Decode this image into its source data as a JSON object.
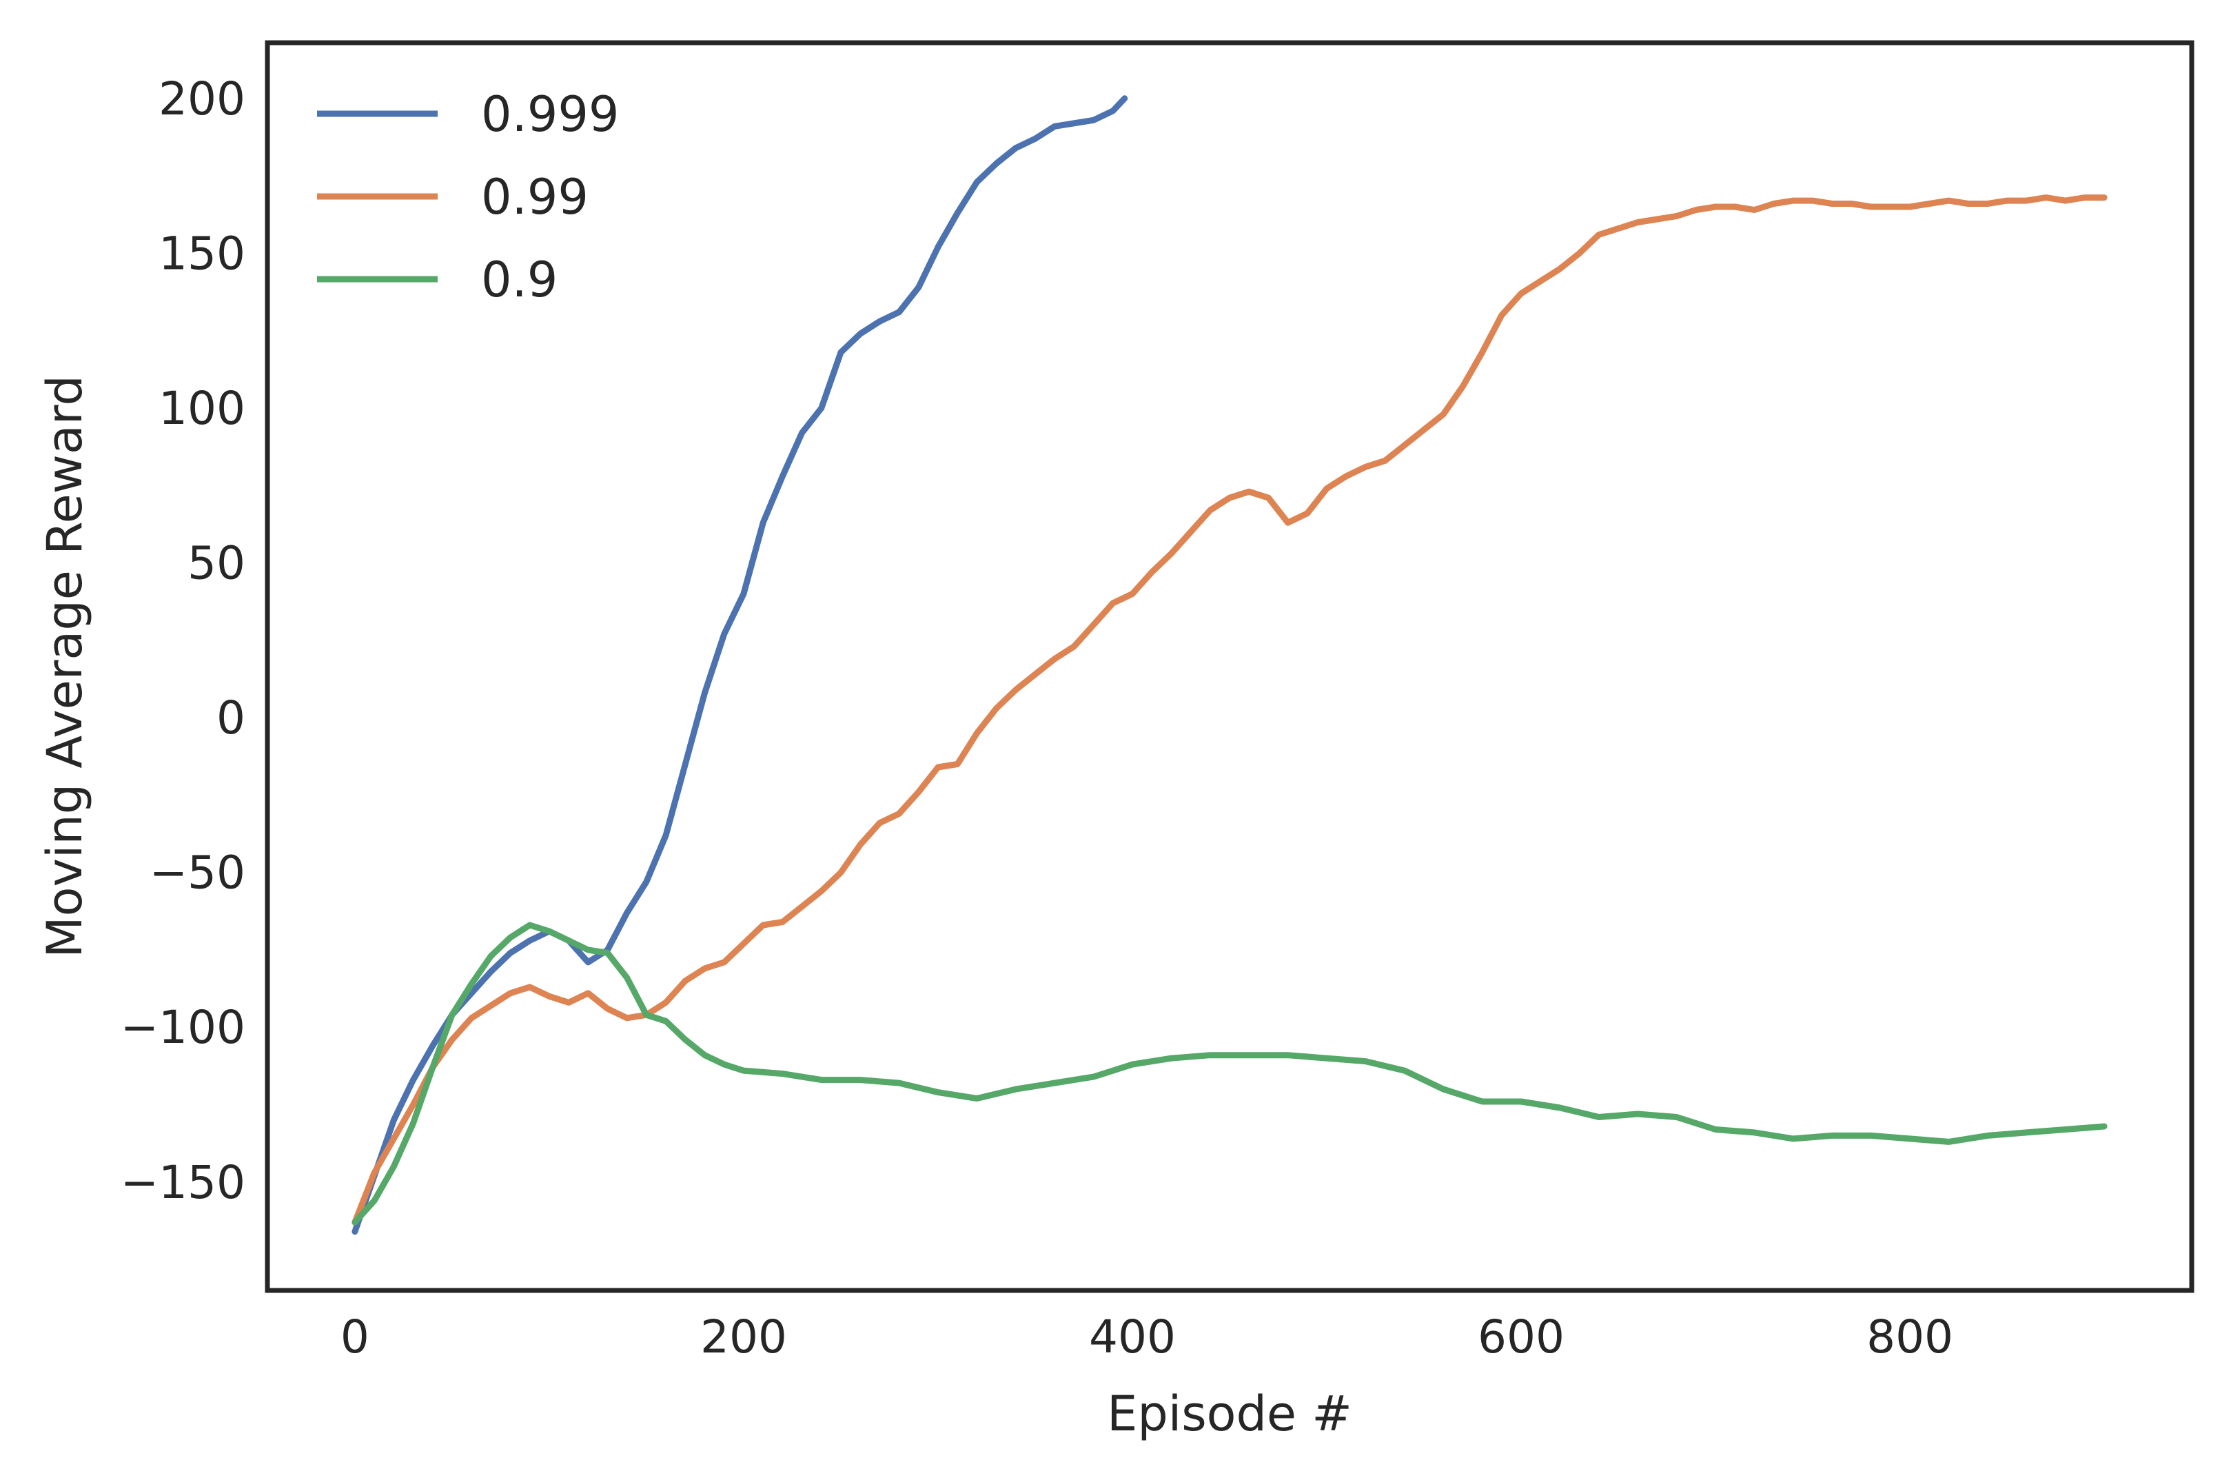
{
  "chart_data": {
    "type": "line",
    "title": "",
    "xlabel": "Episode #",
    "ylabel": "Moving Average Reward",
    "xlim": [
      -45,
      945
    ],
    "ylim": [
      -185,
      218
    ],
    "xticks": [
      0,
      200,
      400,
      600,
      800
    ],
    "yticks": [
      -150,
      -100,
      -50,
      0,
      50,
      100,
      150,
      200
    ],
    "tick_labels_x": [
      "0",
      "200",
      "400",
      "600",
      "800"
    ],
    "tick_labels_y": [
      "−150",
      "−100",
      "−50",
      "0",
      "50",
      "100",
      "150",
      "200"
    ],
    "grid": false,
    "legend_position": "top-left",
    "series": [
      {
        "name": "0.999",
        "color": "#4c72b0",
        "x": [
          0,
          10,
          20,
          30,
          40,
          50,
          60,
          70,
          80,
          90,
          100,
          110,
          120,
          130,
          140,
          150,
          160,
          170,
          180,
          190,
          200,
          210,
          220,
          230,
          240,
          250,
          260,
          270,
          280,
          290,
          300,
          310,
          320,
          330,
          340,
          350,
          360,
          370,
          380,
          390,
          396
        ],
        "y": [
          -166,
          -148,
          -130,
          -117,
          -106,
          -96,
          -89,
          -82,
          -76,
          -72,
          -69,
          -72,
          -79,
          -75,
          -63,
          -53,
          -38,
          -15,
          8,
          27,
          40,
          63,
          78,
          92,
          100,
          118,
          124,
          128,
          131,
          139,
          152,
          163,
          173,
          179,
          184,
          187,
          191,
          192,
          193,
          196,
          200
        ]
      },
      {
        "name": "0.99",
        "color": "#dd8452",
        "x": [
          0,
          10,
          20,
          30,
          40,
          50,
          60,
          70,
          80,
          90,
          100,
          110,
          120,
          130,
          140,
          150,
          160,
          170,
          180,
          190,
          200,
          210,
          220,
          230,
          240,
          250,
          260,
          270,
          280,
          290,
          300,
          310,
          320,
          330,
          340,
          350,
          360,
          370,
          380,
          390,
          400,
          410,
          420,
          430,
          440,
          450,
          460,
          470,
          480,
          490,
          500,
          510,
          520,
          530,
          540,
          550,
          560,
          570,
          580,
          590,
          600,
          610,
          620,
          630,
          640,
          650,
          660,
          670,
          680,
          690,
          700,
          710,
          720,
          730,
          740,
          750,
          760,
          770,
          780,
          790,
          800,
          810,
          820,
          830,
          840,
          850,
          860,
          870,
          880,
          890,
          900
        ],
        "y": [
          -163,
          -147,
          -136,
          -125,
          -113,
          -104,
          -97,
          -93,
          -89,
          -87,
          -90,
          -92,
          -89,
          -94,
          -97,
          -96,
          -92,
          -85,
          -81,
          -79,
          -73,
          -67,
          -66,
          -61,
          -56,
          -50,
          -41,
          -34,
          -31,
          -24,
          -16,
          -15,
          -5,
          3,
          9,
          14,
          19,
          23,
          30,
          37,
          40,
          47,
          53,
          60,
          67,
          71,
          73,
          71,
          63,
          66,
          74,
          78,
          81,
          83,
          88,
          93,
          98,
          107,
          118,
          130,
          137,
          141,
          145,
          150,
          156,
          158,
          160,
          161,
          162,
          164,
          165,
          165,
          164,
          166,
          167,
          167,
          166,
          166,
          165,
          165,
          165,
          166,
          167,
          166,
          166,
          167,
          167,
          168,
          167,
          168,
          168
        ]
      },
      {
        "name": "0.9",
        "color": "#55a868",
        "x": [
          0,
          10,
          20,
          30,
          40,
          50,
          60,
          70,
          80,
          90,
          100,
          110,
          120,
          130,
          140,
          150,
          160,
          170,
          180,
          190,
          200,
          220,
          240,
          260,
          280,
          300,
          320,
          340,
          360,
          380,
          400,
          420,
          440,
          460,
          480,
          500,
          520,
          540,
          560,
          580,
          600,
          620,
          640,
          660,
          680,
          700,
          720,
          740,
          760,
          780,
          800,
          820,
          840,
          860,
          880,
          900
        ],
        "y": [
          -163,
          -156,
          -145,
          -131,
          -113,
          -96,
          -86,
          -77,
          -71,
          -67,
          -69,
          -72,
          -75,
          -76,
          -84,
          -96,
          -98,
          -104,
          -109,
          -112,
          -114,
          -115,
          -117,
          -117,
          -118,
          -121,
          -123,
          -120,
          -118,
          -116,
          -112,
          -110,
          -109,
          -109,
          -109,
          -110,
          -111,
          -114,
          -120,
          -124,
          -124,
          -126,
          -129,
          -128,
          -129,
          -133,
          -134,
          -136,
          -135,
          -135,
          -136,
          -137,
          -135,
          -134,
          -133,
          -132
        ]
      }
    ]
  }
}
